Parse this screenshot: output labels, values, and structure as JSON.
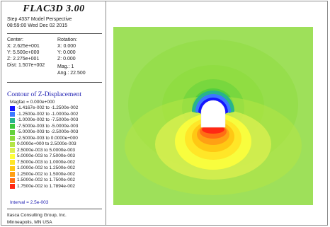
{
  "header": {
    "app_title": "FLAC3D 3.00",
    "step_line": "Step 4337  Model Perspective",
    "time_line": "08:59:00 Wed Dec 02 2015"
  },
  "view": {
    "center_label": "Center:",
    "center_x": "X: 2.625e+001",
    "center_y": "Y: 5.500e+000",
    "center_z": "Z: 2.275e+001",
    "dist": "Dist: 1.507e+002",
    "rotation_label": "Rotation:",
    "rot_x": "X:   0.000",
    "rot_y": "Y:   0.000",
    "rot_z": "Z:   0.000",
    "mag": "Mag.:        1",
    "ang": "Ang.:  22.500"
  },
  "contour": {
    "title": "Contour of Z-Displacement",
    "magfac": "Magfac =  0.000e+000",
    "legend": [
      {
        "label": "-1.4167e-002 to -1.2500e-002",
        "color": "#1414ff"
      },
      {
        "label": "-1.2500e-002 to -1.0000e-002",
        "color": "#3c78ff"
      },
      {
        "label": "-1.0000e-002 to -7.5000e-003",
        "color": "#28b48c"
      },
      {
        "label": "-7.5000e-003 to -5.0000e-003",
        "color": "#3cc83c"
      },
      {
        "label": "-5.0000e-003 to -2.5000e-003",
        "color": "#64d23c"
      },
      {
        "label": "-2.5000e-003 to  0.0000e+000",
        "color": "#8cdc3c"
      },
      {
        "label": " 0.0000e+000 to  2.5000e-003",
        "color": "#b4e646"
      },
      {
        "label": " 2.5000e-003 to  5.0000e-003",
        "color": "#dcf050"
      },
      {
        "label": " 5.0000e-003 to  7.5000e-003",
        "color": "#ffff3c"
      },
      {
        "label": " 7.5000e-003 to  1.0000e-002",
        "color": "#ffe628"
      },
      {
        "label": " 1.0000e-002 to  1.2500e-002",
        "color": "#ffc814"
      },
      {
        "label": " 1.2500e-002 to  1.5000e-002",
        "color": "#ffa014"
      },
      {
        "label": " 1.5000e-002 to  1.7500e-002",
        "color": "#ff6e14"
      },
      {
        "label": " 1.7500e-002 to  1.7894e-002",
        "color": "#ff2814"
      }
    ],
    "interval": "Interval =  2.5e-003"
  },
  "footer": {
    "company": "Itasca Consulting Group, Inc.",
    "location": "Minneapolis, MN  USA"
  },
  "colors": {
    "background_field": "#9ee05a",
    "panel_title": "#1a1ab0"
  }
}
